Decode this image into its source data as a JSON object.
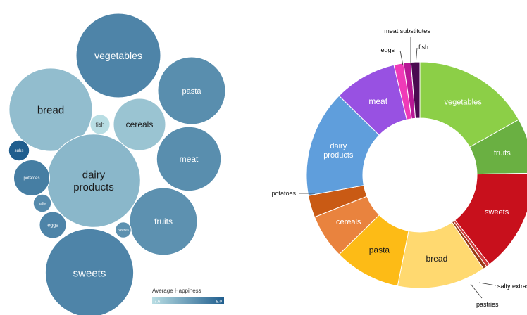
{
  "chart_data": [
    {
      "type": "bubble",
      "legend": {
        "title": "Average Happiness",
        "min_label": "7.6",
        "max_label": "8.0",
        "color_min": "#b8dde3",
        "color_max": "#205e8e",
        "placement": "bottom-right"
      },
      "bubbles": [
        {
          "label": "vegetables",
          "size": 100,
          "happiness": 7.88,
          "label_color": "#ffffff"
        },
        {
          "label": "bread",
          "size": 97,
          "happiness": 7.7,
          "label_color": "#1a1a1a"
        },
        {
          "label": "pasta",
          "size": 64,
          "happiness": 7.85,
          "label_color": "#ffffff"
        },
        {
          "label": "cereals",
          "size": 38,
          "happiness": 7.68,
          "label_color": "#1a1a1a"
        },
        {
          "label": "fish",
          "size": 5.5,
          "happiness": 7.6,
          "label_color": "#333333"
        },
        {
          "label": "meat",
          "size": 58,
          "happiness": 7.85,
          "label_color": "#ffffff"
        },
        {
          "label": "dairy products",
          "size": 122,
          "happiness": 7.72,
          "label_color": "#1a1a1a"
        },
        {
          "label": "fruits",
          "size": 64,
          "happiness": 7.84,
          "label_color": "#ffffff"
        },
        {
          "label": "sweets",
          "size": 109,
          "happiness": 7.88,
          "label_color": "#ffffff"
        },
        {
          "label": "subs",
          "size": 6,
          "happiness": 8.0,
          "label_color": "#ffffff"
        },
        {
          "label": "potatoes",
          "size": 18,
          "happiness": 7.9,
          "label_color": "#ffffff"
        },
        {
          "label": "salty",
          "size": 4.5,
          "happiness": 7.86,
          "label_color": "#ffffff"
        },
        {
          "label": "eggs",
          "size": 10,
          "happiness": 7.88,
          "label_color": "#ffffff"
        },
        {
          "label": "pastries",
          "size": 3.5,
          "happiness": 7.84,
          "label_color": "#ffffff"
        }
      ]
    },
    {
      "type": "pie",
      "donut": true,
      "slices": [
        {
          "label": "vegetables",
          "value": 16,
          "color": "#8ccf47",
          "label_color": "#ffffff"
        },
        {
          "label": "fruits",
          "value": 7.5,
          "color": "#6ab042",
          "label_color": "#ffffff"
        },
        {
          "label": "sweets",
          "value": 14,
          "color": "#c8101c",
          "label_color": "#ffffff"
        },
        {
          "label": "salty extras",
          "value": 0.5,
          "color": "#cf3a3a",
          "label_color": "#000000"
        },
        {
          "label": "pastries",
          "value": 0.5,
          "color": "#9a3a14",
          "label_color": "#000000"
        },
        {
          "label": "bread",
          "value": 12,
          "color": "#ffd970",
          "label_color": "#1a1a1a"
        },
        {
          "label": "pasta",
          "value": 9,
          "color": "#fdbb16",
          "label_color": "#1a1a1a"
        },
        {
          "label": "cereals",
          "value": 6,
          "color": "#e9833e",
          "label_color": "#ffffff"
        },
        {
          "label": "potatoes",
          "value": 3,
          "color": "#c95a14",
          "label_color": "#1a1a1a"
        },
        {
          "label": "dairy products",
          "value": 14.5,
          "color": "#5f9edc",
          "label_color": "#ffffff"
        },
        {
          "label": "meat",
          "value": 8.5,
          "color": "#9851e2",
          "label_color": "#ffffff"
        },
        {
          "label": "eggs",
          "value": 1.3,
          "color": "#f03ab8",
          "label_color": "#000000"
        },
        {
          "label": "meat substitutes",
          "value": 1.0,
          "color": "#b81896",
          "label_color": "#000000"
        },
        {
          "label": "fish",
          "value": 1.2,
          "color": "#4a0a50",
          "label_color": "#000000"
        }
      ]
    }
  ]
}
